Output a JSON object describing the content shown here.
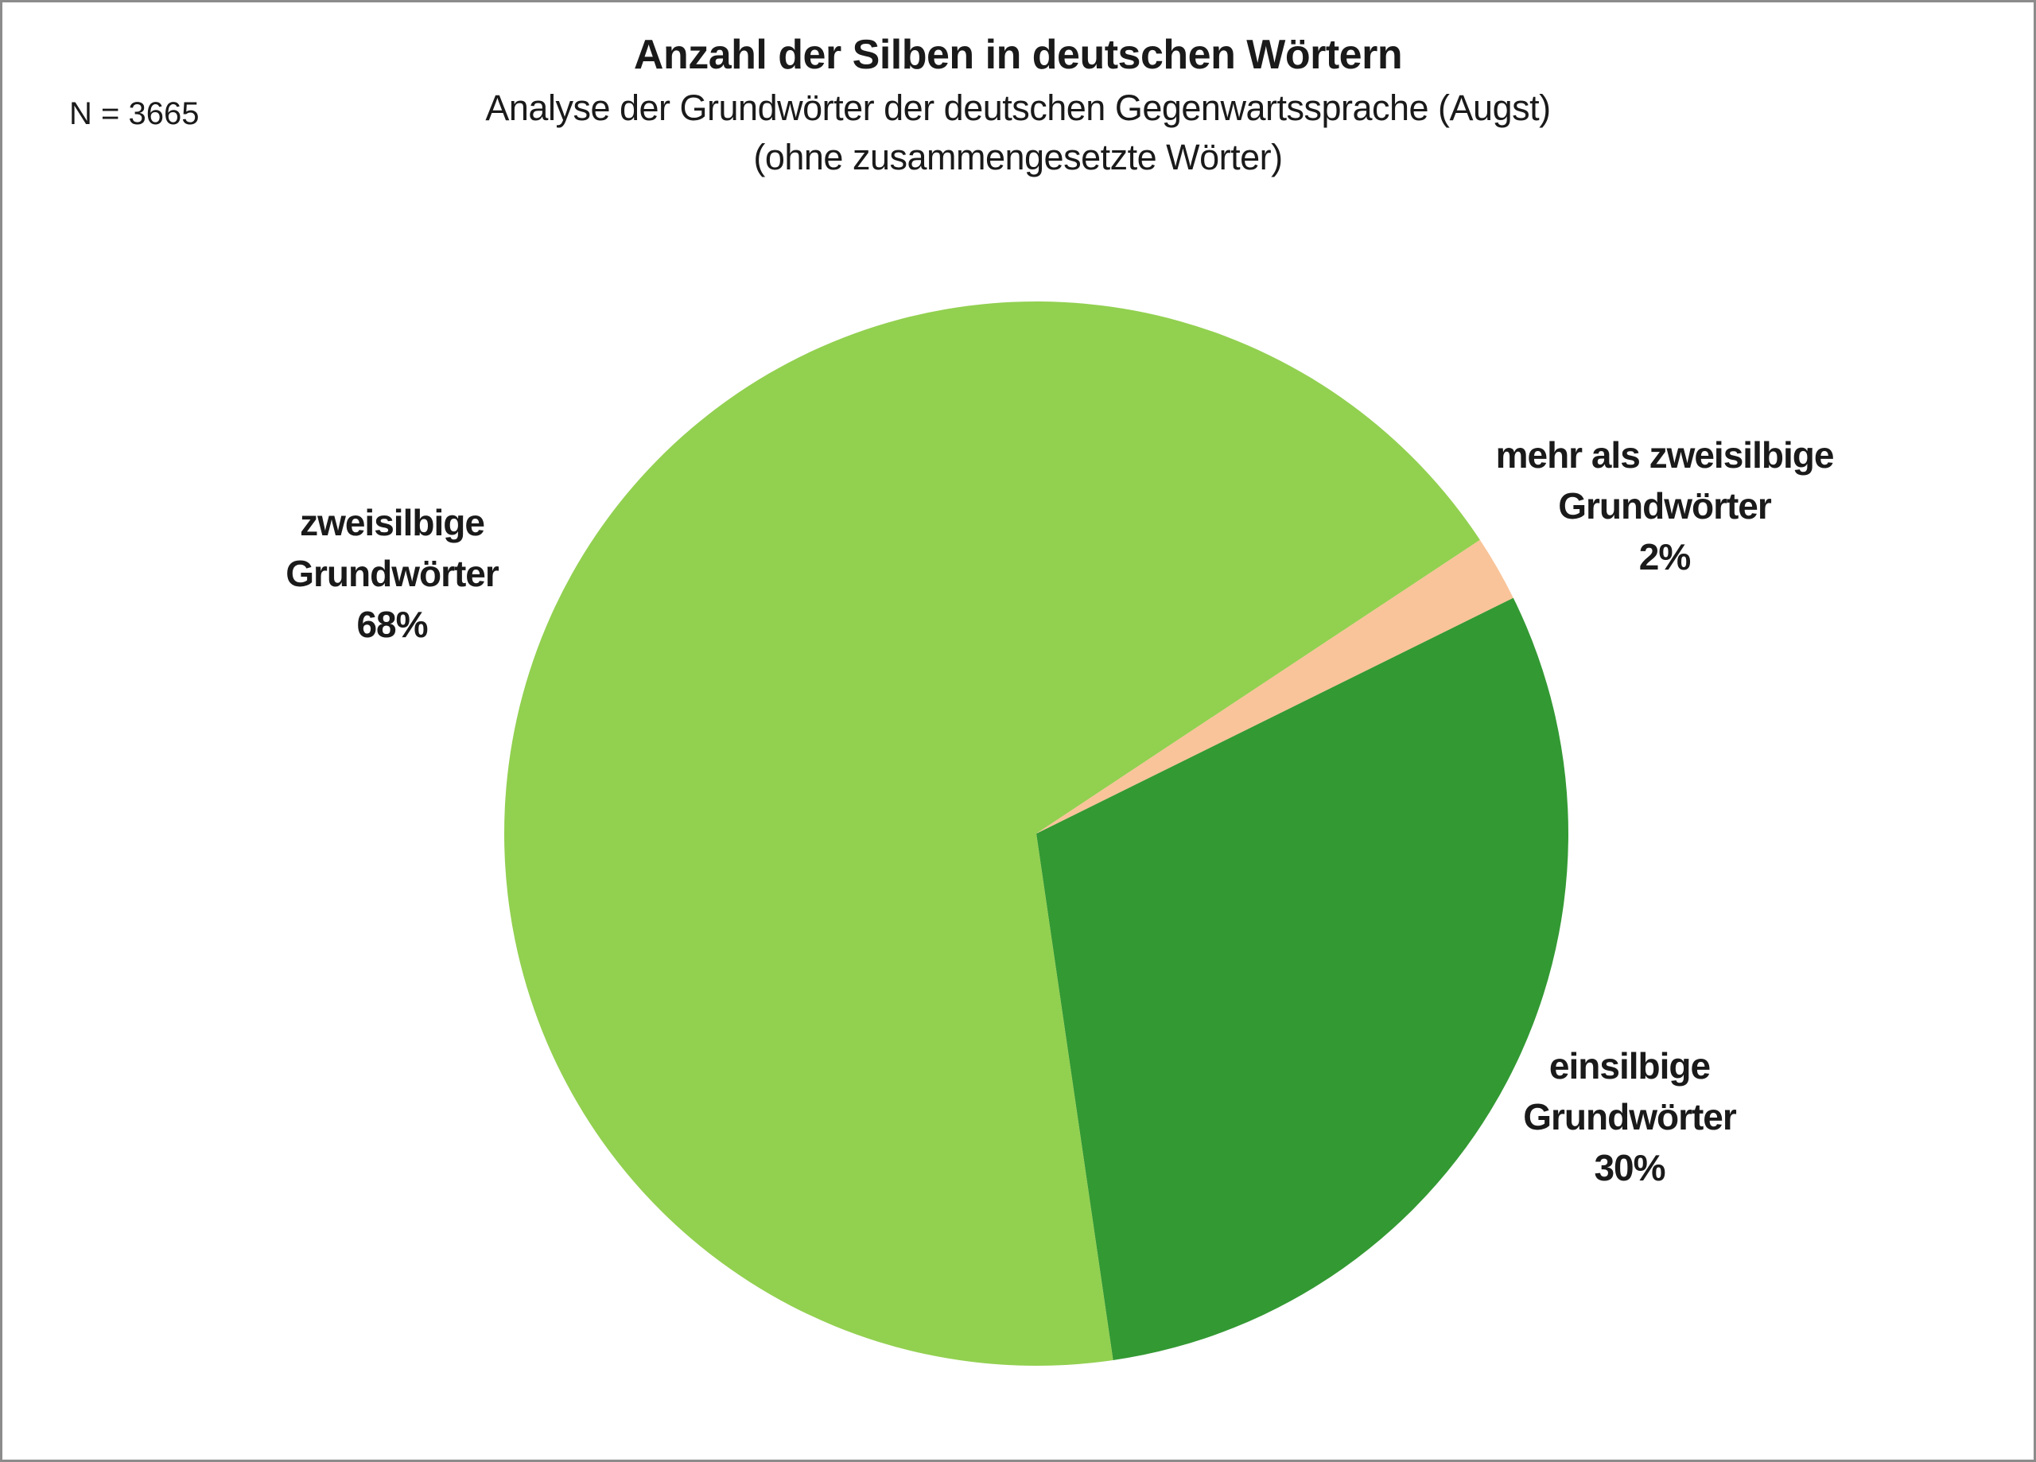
{
  "chart_data": {
    "type": "pie",
    "title": "Anzahl der Silben in deutschen Wörtern",
    "subtitle": "Analyse der Grundwörter der deutschen Gegenwartssprache (Augst)",
    "subtitle_note": "(ohne zusammengesetzte Wörter)",
    "sample_size_label": "N = 3665",
    "sample_size": 3665,
    "legend": "none",
    "rotation_deg_clockwise_from_top": 63.7,
    "background_color": "#ffffff",
    "border_color": "#8c8c8c",
    "slices": [
      {
        "id": "einsilbige",
        "label": "einsilbige Grundwörter",
        "pct": 30,
        "color": "#339933",
        "label_lines": [
          "einsilbige",
          "Grundwörter",
          "30%"
        ]
      },
      {
        "id": "zweisilbige",
        "label": "zweisilbige Grundwörter",
        "pct": 68,
        "color": "#92D050",
        "label_lines": [
          "zweisilbige",
          "Grundwörter",
          "68%"
        ]
      },
      {
        "id": "mehr-als-zweisilbige",
        "label": "mehr als zweisilbige Grundwörter",
        "pct": 2,
        "color": "#F9C499",
        "label_lines": [
          "mehr als zweisilbige",
          "Grundwörter",
          "2%"
        ]
      }
    ]
  }
}
